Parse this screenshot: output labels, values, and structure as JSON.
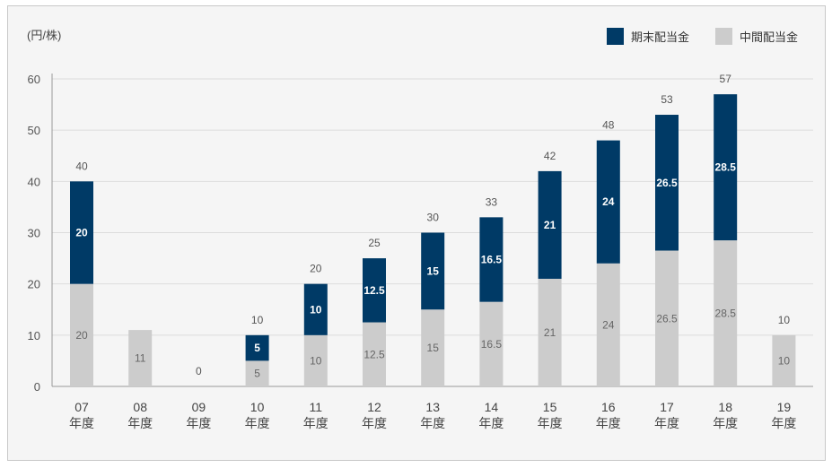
{
  "unit_label": "(円/株)",
  "colors": {
    "final": "#003a66",
    "interim": "#cccccc",
    "grid": "#dcdcdc",
    "axis": "#999999",
    "text": "#555555"
  },
  "chart_data": {
    "type": "bar",
    "stacked": true,
    "categories": [
      "07\n年度",
      "08\n年度",
      "09\n年度",
      "10\n年度",
      "11\n年度",
      "12\n年度",
      "13\n年度",
      "14\n年度",
      "15\n年度",
      "16\n年度",
      "17\n年度",
      "18\n年度",
      "19\n年度"
    ],
    "series": [
      {
        "name": "中間配当金",
        "color": "#cccccc",
        "values": [
          20,
          11,
          0,
          5,
          10,
          12.5,
          15,
          16.5,
          21,
          24,
          26.5,
          28.5,
          10
        ]
      },
      {
        "name": "期末配当金",
        "color": "#003a66",
        "values": [
          20,
          null,
          null,
          5,
          10,
          12.5,
          15,
          16.5,
          21,
          24,
          26.5,
          28.5,
          null
        ]
      }
    ],
    "totals": [
      40,
      null,
      0,
      10,
      20,
      25,
      30,
      33,
      42,
      48,
      53,
      57,
      10
    ],
    "ylim": [
      0,
      60
    ],
    "yticks": [
      0,
      10,
      20,
      30,
      40,
      50,
      60
    ],
    "grid": true,
    "legend_position": "top-right"
  }
}
